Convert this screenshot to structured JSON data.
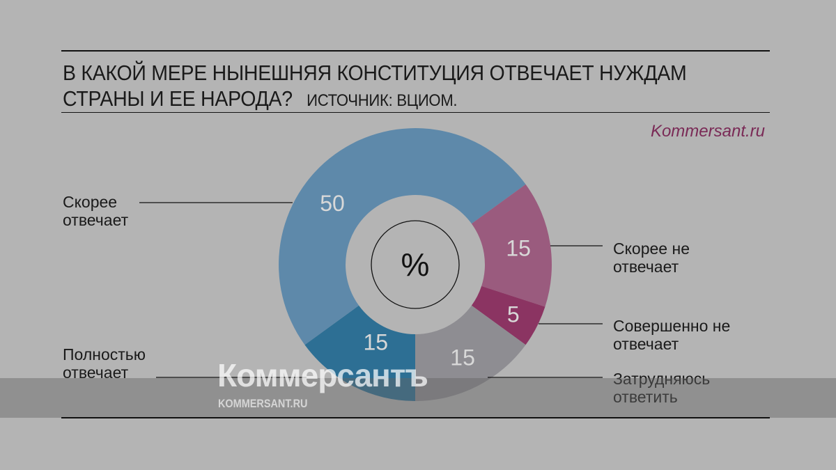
{
  "header": {
    "title_line1": "В КАКОЙ МЕРЕ НЫНЕШНЯЯ КОНСТИТУЦИЯ ОТВЕЧАЕТ НУЖДАМ",
    "title_line2": "СТРАНЫ И ЕЕ НАРОДА?",
    "source": "ИСТОЧНИК: ВЦИОМ.",
    "brand": "Kommersant.ru"
  },
  "watermark": {
    "logo": "Коммерсантъ",
    "site": "KOMMERSANT.RU"
  },
  "chart_data": {
    "type": "pie",
    "donut": true,
    "center_label": "%",
    "title": "В КАКОЙ МЕРЕ НЫНЕШНЯЯ КОНСТИТУЦИЯ ОТВЕЧАЕТ НУЖДАМ СТРАНЫ И ЕЕ НАРОДА?",
    "slices": [
      {
        "label": "Полностью отвечает",
        "value": 15,
        "color": "#2d6f94"
      },
      {
        "label": "Скорее отвечает",
        "value": 50,
        "color": "#5e89aa"
      },
      {
        "label": "Скорее не отвечает",
        "value": 15,
        "color": "#9a5b7e"
      },
      {
        "label": "Совершенно не отвечает",
        "value": 5,
        "color": "#8b3462"
      },
      {
        "label": "Затрудняюсь ответить",
        "value": 15,
        "color": "#8e8d92"
      }
    ]
  }
}
